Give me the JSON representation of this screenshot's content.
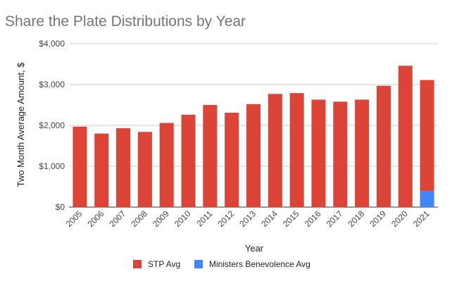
{
  "chart_data": {
    "type": "bar",
    "stacked": true,
    "title": "Share the Plate Distributions by Year",
    "xlabel": "Year",
    "ylabel": "Two Month Average Amount, $",
    "ylim": [
      0,
      4000
    ],
    "yticks": [
      {
        "value": 0,
        "label": "$0"
      },
      {
        "value": 1000,
        "label": "$1,000"
      },
      {
        "value": 2000,
        "label": "$2,000"
      },
      {
        "value": 3000,
        "label": "$3,000"
      },
      {
        "value": 4000,
        "label": "$4,000"
      }
    ],
    "grid": true,
    "legend_position": "bottom",
    "categories": [
      "2005",
      "2006",
      "2007",
      "2008",
      "2009",
      "2010",
      "2011",
      "2012",
      "2013",
      "2014",
      "2015",
      "2016",
      "2017",
      "2018",
      "2019",
      "2020",
      "2021"
    ],
    "series": [
      {
        "name": "Ministers Benevolence Avg",
        "color": "#4285F4",
        "values": [
          0,
          0,
          0,
          0,
          0,
          0,
          0,
          0,
          0,
          0,
          0,
          0,
          0,
          0,
          0,
          0,
          390
        ]
      },
      {
        "name": "STP Avg",
        "color": "#DB4437",
        "values": [
          1970,
          1800,
          1930,
          1840,
          2060,
          2260,
          2500,
          2310,
          2520,
          2770,
          2790,
          2630,
          2580,
          2630,
          2970,
          3460,
          2720
        ]
      }
    ],
    "legend_order": [
      "STP Avg",
      "Ministers Benevolence Avg"
    ]
  }
}
